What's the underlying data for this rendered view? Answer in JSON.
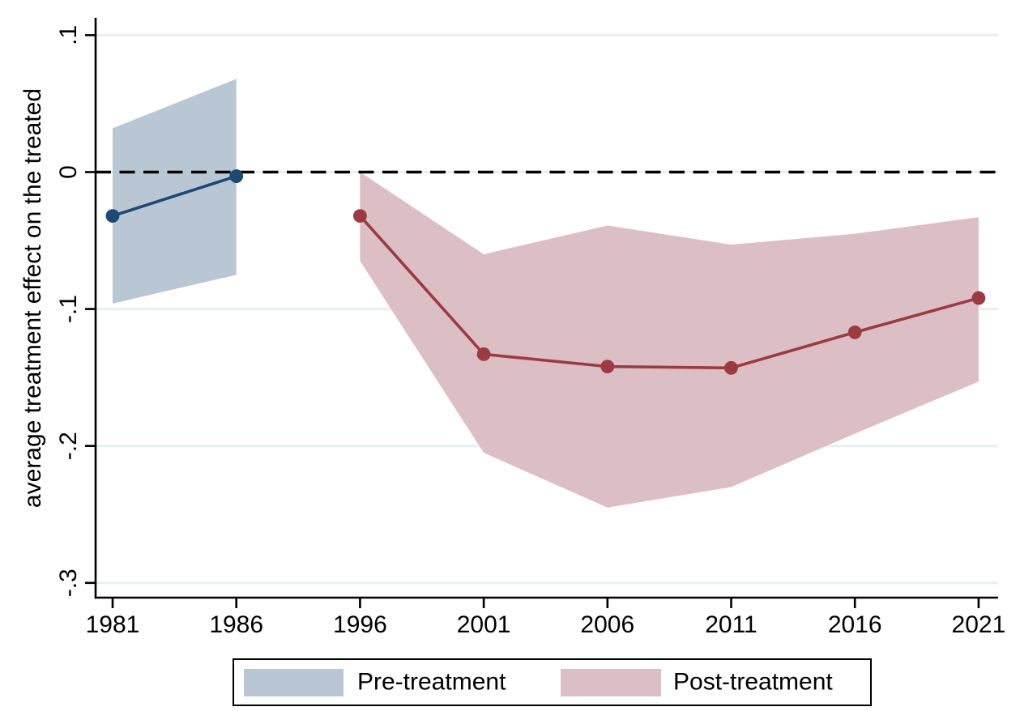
{
  "chart_data": {
    "type": "line",
    "title": "",
    "xlabel": "",
    "ylabel": "average treatment effect on the treated",
    "categories": [
      "1981",
      "1986",
      "1996",
      "2001",
      "2006",
      "2011",
      "2016",
      "2021"
    ],
    "y_ticks": [
      {
        "label": ".1",
        "value": 0.1
      },
      {
        "label": "0",
        "value": 0
      },
      {
        "label": "-.1",
        "value": -0.1
      },
      {
        "label": "-.2",
        "value": -0.2
      },
      {
        "label": "-.3",
        "value": -0.3
      }
    ],
    "ylim": [
      -0.324,
      0.113
    ],
    "grid": true,
    "zero_reference_line": {
      "value": 0,
      "style": "dashed",
      "color": "#000000"
    },
    "series": [
      {
        "name": "Pre-treatment",
        "x": [
          "1981",
          "1986"
        ],
        "values": [
          -0.032,
          -0.003
        ],
        "ci_upper": [
          0.032,
          0.068
        ],
        "ci_lower": [
          -0.096,
          -0.075
        ],
        "marker": "circle",
        "line_color": "#1c4a74",
        "band_color": "#b9c7d4"
      },
      {
        "name": "Post-treatment",
        "x": [
          "1996",
          "2001",
          "2006",
          "2011",
          "2016",
          "2021"
        ],
        "values": [
          -0.032,
          -0.133,
          -0.142,
          -0.143,
          -0.117,
          -0.092
        ],
        "ci_upper": [
          0.0,
          -0.06,
          -0.039,
          -0.053,
          -0.045,
          -0.033
        ],
        "ci_lower": [
          -0.065,
          -0.205,
          -0.245,
          -0.23,
          -0.191,
          -0.153
        ],
        "marker": "circle",
        "line_color": "#9c3a42",
        "band_color": "#dcbfc4"
      }
    ],
    "legend": {
      "position": "bottom",
      "entries": [
        "Pre-treatment",
        "Post-treatment"
      ]
    },
    "colors": {
      "background": "#ffffff",
      "gridline": "#e8f0f0",
      "axis": "#000000",
      "text": "#000000"
    }
  }
}
